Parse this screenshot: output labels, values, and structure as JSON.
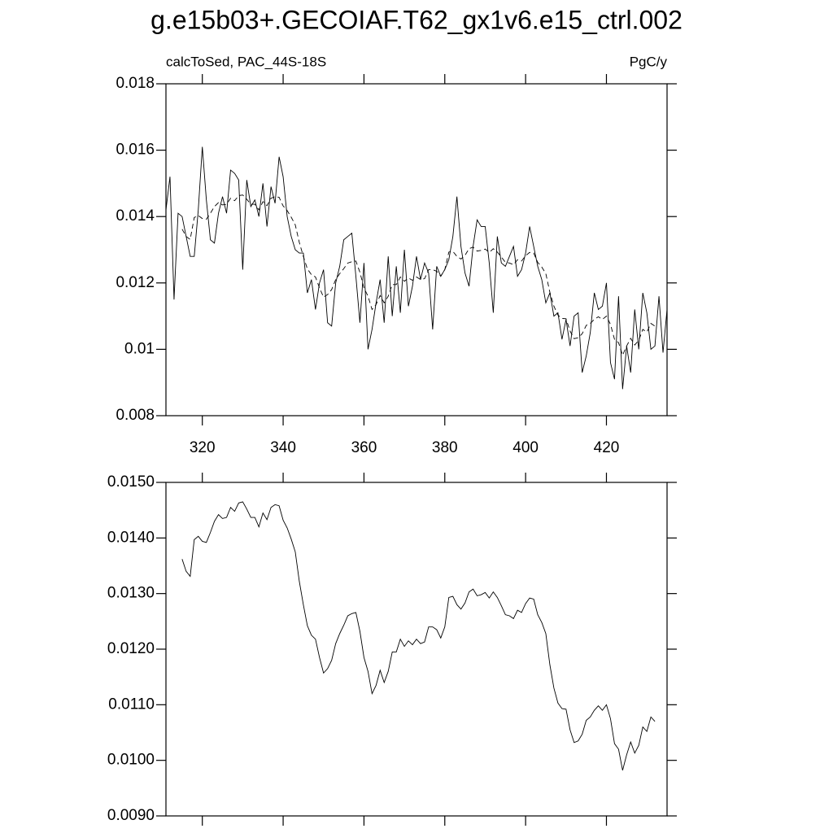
{
  "chart_data": [
    {
      "type": "line",
      "title": "g.e15b03+.GECOIAF.T62_gx1v6.e15_ctrl.002",
      "subtitle_left": "calcToSed, PAC_44S-18S",
      "subtitle_right": "PgC/y",
      "x": [
        311,
        312,
        313,
        314,
        315,
        316,
        317,
        318,
        319,
        320,
        321,
        322,
        323,
        324,
        325,
        326,
        327,
        328,
        329,
        330,
        331,
        332,
        333,
        334,
        335,
        336,
        337,
        338,
        339,
        340,
        341,
        342,
        343,
        344,
        345,
        346,
        347,
        348,
        349,
        350,
        351,
        352,
        353,
        354,
        355,
        356,
        357,
        358,
        359,
        360,
        361,
        362,
        363,
        364,
        365,
        366,
        367,
        368,
        369,
        370,
        371,
        372,
        373,
        374,
        375,
        376,
        377,
        378,
        379,
        380,
        381,
        382,
        383,
        384,
        385,
        386,
        387,
        388,
        389,
        390,
        391,
        392,
        393,
        394,
        395,
        396,
        397,
        398,
        399,
        400,
        401,
        402,
        403,
        404,
        405,
        406,
        407,
        408,
        409,
        410,
        411,
        412,
        413,
        414,
        415,
        416,
        417,
        418,
        419,
        420,
        421,
        422,
        423,
        424,
        425,
        426,
        427,
        428,
        429,
        430,
        431,
        432,
        433,
        434,
        435
      ],
      "series": [
        {
          "color": "#000000",
          "dashed": false,
          "values": [
            0.0142,
            0.0152,
            0.0115,
            0.0141,
            0.014,
            0.0134,
            0.0128,
            0.0128,
            0.0142,
            0.0161,
            0.0145,
            0.0133,
            0.0132,
            0.0141,
            0.0146,
            0.0141,
            0.0154,
            0.0153,
            0.0151,
            0.0124,
            0.0151,
            0.0143,
            0.0145,
            0.014,
            0.015,
            0.0137,
            0.0149,
            0.0144,
            0.0158,
            0.0152,
            0.014,
            0.0134,
            0.013,
            0.0129,
            0.0129,
            0.0117,
            0.0121,
            0.0112,
            0.012,
            0.0124,
            0.0108,
            0.0107,
            0.012,
            0.0125,
            0.0133,
            0.0134,
            0.0135,
            0.0122,
            0.0108,
            0.0126,
            0.01,
            0.0106,
            0.0114,
            0.0121,
            0.0108,
            0.0128,
            0.011,
            0.0125,
            0.0111,
            0.013,
            0.0113,
            0.0119,
            0.0128,
            0.0121,
            0.0126,
            0.0123,
            0.0106,
            0.0125,
            0.0122,
            0.0124,
            0.0127,
            0.0134,
            0.0146,
            0.0131,
            0.0123,
            0.0119,
            0.0131,
            0.0139,
            0.0137,
            0.0137,
            0.0126,
            0.0111,
            0.0134,
            0.0126,
            0.0125,
            0.0128,
            0.0131,
            0.0122,
            0.0124,
            0.0129,
            0.0137,
            0.0131,
            0.0125,
            0.0121,
            0.0114,
            0.0117,
            0.011,
            0.0111,
            0.0103,
            0.0109,
            0.0101,
            0.011,
            0.0111,
            0.0093,
            0.0098,
            0.0105,
            0.0117,
            0.0112,
            0.0113,
            0.012,
            0.0096,
            0.0091,
            0.0116,
            0.0088,
            0.0101,
            0.0093,
            0.0112,
            0.01,
            0.0117,
            0.0111,
            0.01,
            0.0101,
            0.0116,
            0.0099,
            0.0112
          ]
        },
        {
          "color": "#000000",
          "dashed": true,
          "values": [
            null,
            null,
            null,
            null,
            0.01362,
            0.0134,
            0.01331,
            0.01397,
            0.01403,
            0.01394,
            0.01392,
            0.0141,
            0.0143,
            0.01442,
            0.01435,
            0.01437,
            0.01455,
            0.01448,
            0.01463,
            0.01465,
            0.01452,
            0.01437,
            0.01437,
            0.0142,
            0.01445,
            0.01433,
            0.01455,
            0.0146,
            0.01458,
            0.01432,
            0.01418,
            0.01398,
            0.01375,
            0.01322,
            0.0128,
            0.01242,
            0.01225,
            0.01218,
            0.01185,
            0.01157,
            0.01165,
            0.0118,
            0.0121,
            0.01228,
            0.01243,
            0.0126,
            0.01264,
            0.01266,
            0.01232,
            0.01185,
            0.0116,
            0.0112,
            0.01135,
            0.01162,
            0.0114,
            0.0116,
            0.01195,
            0.01195,
            0.01218,
            0.01205,
            0.01215,
            0.01208,
            0.01218,
            0.0121,
            0.01213,
            0.0124,
            0.0124,
            0.01235,
            0.0122,
            0.0124,
            0.01293,
            0.01295,
            0.0128,
            0.01272,
            0.01283,
            0.01303,
            0.01308,
            0.01296,
            0.01298,
            0.01302,
            0.01292,
            0.01303,
            0.01293,
            0.01278,
            0.01262,
            0.0126,
            0.01255,
            0.0127,
            0.01266,
            0.01282,
            0.01292,
            0.0129,
            0.01262,
            0.01248,
            0.01228,
            0.01172,
            0.0113,
            0.01103,
            0.01093,
            0.01092,
            0.01055,
            0.01032,
            0.01035,
            0.01047,
            0.01072,
            0.01078,
            0.0109,
            0.01098,
            0.0109,
            0.011,
            0.01075,
            0.0103,
            0.0102,
            0.00982,
            0.0101,
            0.01033,
            0.01013,
            0.01027,
            0.0106,
            0.01052,
            0.01078,
            0.0107,
            null,
            null,
            null
          ]
        }
      ],
      "xlim": [
        311,
        435
      ],
      "ylim": [
        0.008,
        0.018
      ],
      "xticks": [
        320,
        340,
        360,
        380,
        400,
        420
      ],
      "xtick_labels": true,
      "yticks": [
        0.008,
        0.01,
        0.012,
        0.014,
        0.016,
        0.018
      ]
    },
    {
      "type": "line",
      "x": [
        315,
        316,
        317,
        318,
        319,
        320,
        321,
        322,
        323,
        324,
        325,
        326,
        327,
        328,
        329,
        330,
        331,
        332,
        333,
        334,
        335,
        336,
        337,
        338,
        339,
        340,
        341,
        342,
        343,
        344,
        345,
        346,
        347,
        348,
        349,
        350,
        351,
        352,
        353,
        354,
        355,
        356,
        357,
        358,
        359,
        360,
        361,
        362,
        363,
        364,
        365,
        366,
        367,
        368,
        369,
        370,
        371,
        372,
        373,
        374,
        375,
        376,
        377,
        378,
        379,
        380,
        381,
        382,
        383,
        384,
        385,
        386,
        387,
        388,
        389,
        390,
        391,
        392,
        393,
        394,
        395,
        396,
        397,
        398,
        399,
        400,
        401,
        402,
        403,
        404,
        405,
        406,
        407,
        408,
        409,
        410,
        411,
        412,
        413,
        414,
        415,
        416,
        417,
        418,
        419,
        420,
        421,
        422,
        423,
        424,
        425,
        426,
        427,
        428,
        429,
        430,
        431,
        432
      ],
      "series": [
        {
          "color": "#000000",
          "dashed": false,
          "values": [
            0.01362,
            0.0134,
            0.01331,
            0.01397,
            0.01403,
            0.01394,
            0.01392,
            0.0141,
            0.0143,
            0.01442,
            0.01435,
            0.01437,
            0.01455,
            0.01448,
            0.01463,
            0.01465,
            0.01452,
            0.01437,
            0.01437,
            0.0142,
            0.01445,
            0.01433,
            0.01455,
            0.0146,
            0.01458,
            0.01432,
            0.01418,
            0.01398,
            0.01375,
            0.01322,
            0.0128,
            0.01242,
            0.01225,
            0.01218,
            0.01185,
            0.01157,
            0.01165,
            0.0118,
            0.0121,
            0.01228,
            0.01243,
            0.0126,
            0.01264,
            0.01266,
            0.01232,
            0.01185,
            0.0116,
            0.0112,
            0.01135,
            0.01162,
            0.0114,
            0.0116,
            0.01195,
            0.01195,
            0.01218,
            0.01205,
            0.01215,
            0.01208,
            0.01218,
            0.0121,
            0.01213,
            0.0124,
            0.0124,
            0.01235,
            0.0122,
            0.0124,
            0.01293,
            0.01295,
            0.0128,
            0.01272,
            0.01283,
            0.01303,
            0.01308,
            0.01296,
            0.01298,
            0.01302,
            0.01292,
            0.01303,
            0.01293,
            0.01278,
            0.01262,
            0.0126,
            0.01255,
            0.0127,
            0.01266,
            0.01282,
            0.01292,
            0.0129,
            0.01262,
            0.01248,
            0.01228,
            0.01172,
            0.0113,
            0.01103,
            0.01093,
            0.01092,
            0.01055,
            0.01032,
            0.01035,
            0.01047,
            0.01072,
            0.01078,
            0.0109,
            0.01098,
            0.0109,
            0.011,
            0.01075,
            0.0103,
            0.0102,
            0.00982,
            0.0101,
            0.01033,
            0.01013,
            0.01027,
            0.0106,
            0.01052,
            0.01078,
            0.0107
          ]
        }
      ],
      "xlim": [
        311,
        435
      ],
      "ylim": [
        0.009,
        0.015
      ],
      "xticks": [
        320,
        340,
        360,
        380,
        400,
        420
      ],
      "xtick_labels": false,
      "yticks": [
        {
          "value": 0.009,
          "label": "0.0090"
        },
        {
          "value": 0.01,
          "label": "0.0100"
        },
        {
          "value": 0.011,
          "label": "0.0110"
        },
        {
          "value": 0.012,
          "label": "0.0120"
        },
        {
          "value": 0.013,
          "label": "0.0130"
        },
        {
          "value": 0.014,
          "label": "0.0140"
        },
        {
          "value": 0.015,
          "label": "0.0150"
        }
      ]
    }
  ]
}
